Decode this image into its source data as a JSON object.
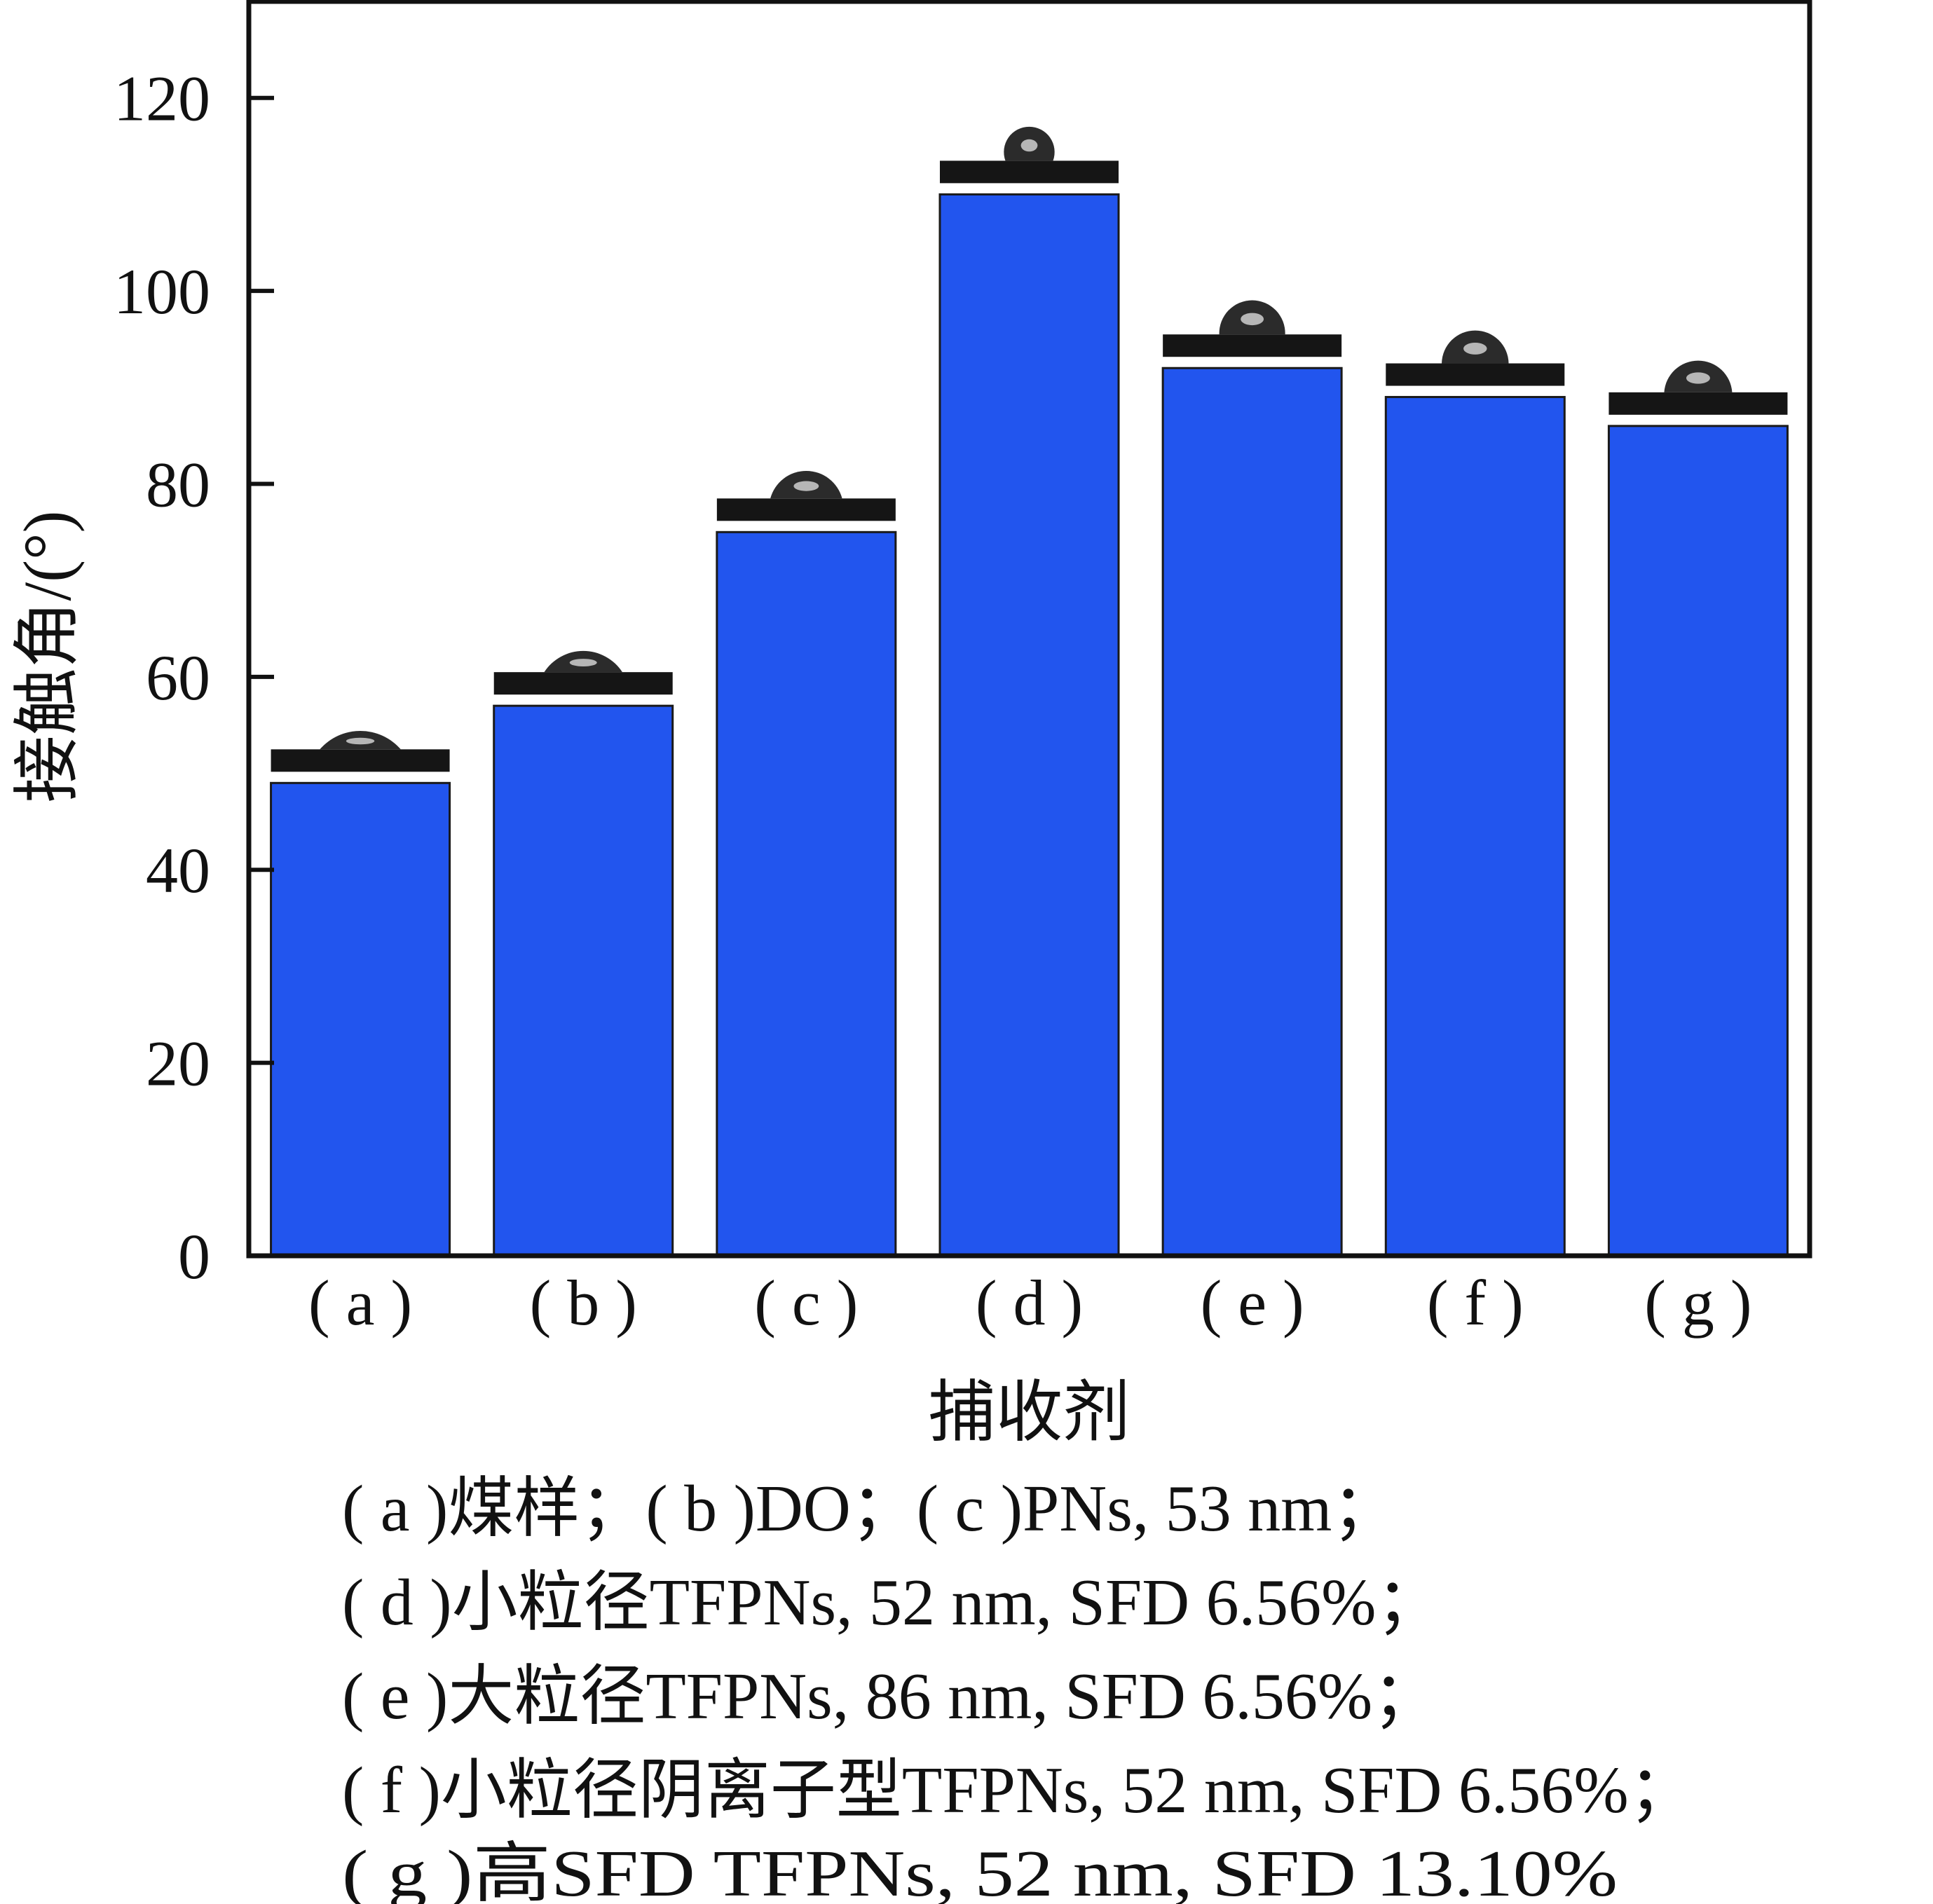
{
  "chart_data": {
    "type": "bar",
    "title": "",
    "xlabel": "捕收剂",
    "ylabel": "接触角/(°)",
    "ylim": [
      0,
      130
    ],
    "yticks": [
      0,
      20,
      40,
      60,
      80,
      100,
      120
    ],
    "grid": false,
    "categories": [
      "( a )",
      "( b )",
      "( c )",
      "( d )",
      "( e )",
      "( f )",
      "( g )"
    ],
    "values": [
      49,
      57,
      75,
      110,
      92,
      89,
      86
    ],
    "bar_color": "#2255EE",
    "legend": [
      "( a )煤样；( b )DO；( c )PNs, 53 nm；",
      "( d )小粒径TFPNs, 52 nm, SFD 6.56%；",
      "( e )大粒径TFPNs, 86 nm, SFD 6.56%；",
      "( f )小粒径阴离子型TFPNs, 52 nm, SFD 6.56%；",
      "( g )高SFD TFPNs, 52 nm, SFD 13.10%"
    ],
    "annotations": "contact-angle droplet images above each bar"
  }
}
